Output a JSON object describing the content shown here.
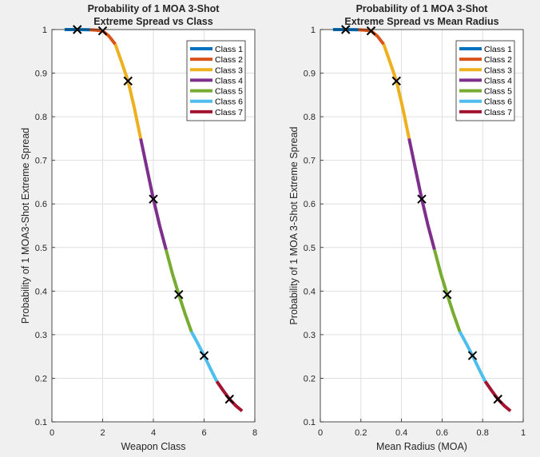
{
  "figure": {
    "background": "#f0f0f0",
    "axes_background": "#ffffff",
    "grid_color": "#dfdfdf"
  },
  "chart_data": [
    {
      "type": "line",
      "title": [
        "Probability of 1 MOA 3-Shot",
        "Extreme Spread vs Class"
      ],
      "xlabel": "Weapon Class",
      "ylabel": "Probability of 1 MOA3-Shot Extreme Spread",
      "xlim": [
        0,
        8
      ],
      "ylim": [
        0.1,
        1
      ],
      "xticks": [
        0,
        2,
        4,
        6,
        8
      ],
      "yticks": [
        0.1,
        0.2,
        0.3,
        0.4,
        0.5,
        0.6,
        0.7,
        0.8,
        0.9,
        1
      ],
      "grid": true,
      "legend_position": "top-right",
      "series": [
        {
          "name": "Class 1",
          "color": "#0072BD",
          "x": [
            0.5,
            0.75,
            1.0,
            1.25,
            1.5
          ],
          "y": [
            1.0,
            1.0,
            1.0,
            0.9999,
            0.9995
          ]
        },
        {
          "name": "Class 2",
          "color": "#D95319",
          "x": [
            1.5,
            1.75,
            2.0,
            2.25,
            2.5
          ],
          "y": [
            0.9995,
            0.9985,
            0.997,
            0.985,
            0.966
          ]
        },
        {
          "name": "Class 3",
          "color": "#EDB120",
          "x": [
            2.5,
            2.75,
            3.0,
            3.25,
            3.5
          ],
          "y": [
            0.966,
            0.925,
            0.882,
            0.82,
            0.75
          ]
        },
        {
          "name": "Class 4",
          "color": "#7E2F8E",
          "x": [
            3.5,
            3.75,
            4.0,
            4.25,
            4.5
          ],
          "y": [
            0.75,
            0.68,
            0.611,
            0.55,
            0.495
          ]
        },
        {
          "name": "Class 5",
          "color": "#77AC30",
          "x": [
            4.5,
            4.75,
            5.0,
            5.25,
            5.5
          ],
          "y": [
            0.495,
            0.44,
            0.392,
            0.348,
            0.307
          ]
        },
        {
          "name": "Class 6",
          "color": "#4DBEEE",
          "x": [
            5.5,
            5.75,
            6.0,
            6.25,
            6.5
          ],
          "y": [
            0.307,
            0.28,
            0.252,
            0.222,
            0.193
          ]
        },
        {
          "name": "Class 7",
          "color": "#A2142F",
          "x": [
            6.5,
            6.75,
            7.0,
            7.25,
            7.5
          ],
          "y": [
            0.193,
            0.172,
            0.152,
            0.137,
            0.125
          ]
        }
      ],
      "markers": {
        "x": [
          1,
          2,
          3,
          4,
          5,
          6,
          7
        ],
        "y": [
          1.0,
          0.997,
          0.882,
          0.611,
          0.392,
          0.252,
          0.152
        ]
      }
    },
    {
      "type": "line",
      "title": [
        "Probability of 1 MOA 3-Shot",
        "Extreme Spread vs Mean Radius"
      ],
      "xlabel": "Mean Radius (MOA)",
      "ylabel": "Probability of 1 MOA 3-Shot Extreme Spread",
      "xlim": [
        0,
        1
      ],
      "ylim": [
        0.1,
        1
      ],
      "xticks": [
        0,
        0.2,
        0.4,
        0.6,
        0.8,
        1
      ],
      "yticks": [
        0.1,
        0.2,
        0.3,
        0.4,
        0.5,
        0.6,
        0.7,
        0.8,
        0.9,
        1
      ],
      "grid": true,
      "legend_position": "top-right",
      "series": [
        {
          "name": "Class 1",
          "color": "#0072BD",
          "x": [
            0.0625,
            0.09375,
            0.125,
            0.15625,
            0.1875
          ],
          "y": [
            1.0,
            1.0,
            1.0,
            0.9999,
            0.9995
          ]
        },
        {
          "name": "Class 2",
          "color": "#D95319",
          "x": [
            0.1875,
            0.21875,
            0.25,
            0.28125,
            0.3125
          ],
          "y": [
            0.9995,
            0.9985,
            0.997,
            0.985,
            0.966
          ]
        },
        {
          "name": "Class 3",
          "color": "#EDB120",
          "x": [
            0.3125,
            0.34375,
            0.375,
            0.40625,
            0.4375
          ],
          "y": [
            0.966,
            0.925,
            0.882,
            0.82,
            0.75
          ]
        },
        {
          "name": "Class 4",
          "color": "#7E2F8E",
          "x": [
            0.4375,
            0.46875,
            0.5,
            0.53125,
            0.5625
          ],
          "y": [
            0.75,
            0.68,
            0.611,
            0.55,
            0.495
          ]
        },
        {
          "name": "Class 5",
          "color": "#77AC30",
          "x": [
            0.5625,
            0.59375,
            0.625,
            0.65625,
            0.6875
          ],
          "y": [
            0.495,
            0.44,
            0.392,
            0.348,
            0.307
          ]
        },
        {
          "name": "Class 6",
          "color": "#4DBEEE",
          "x": [
            0.6875,
            0.71875,
            0.75,
            0.78125,
            0.8125
          ],
          "y": [
            0.307,
            0.28,
            0.252,
            0.222,
            0.193
          ]
        },
        {
          "name": "Class 7",
          "color": "#A2142F",
          "x": [
            0.8125,
            0.84375,
            0.875,
            0.90625,
            0.9375
          ],
          "y": [
            0.193,
            0.172,
            0.152,
            0.137,
            0.125
          ]
        }
      ],
      "markers": {
        "x": [
          0.125,
          0.25,
          0.375,
          0.5,
          0.625,
          0.75,
          0.875
        ],
        "y": [
          1.0,
          0.997,
          0.882,
          0.611,
          0.392,
          0.252,
          0.152
        ]
      }
    }
  ]
}
